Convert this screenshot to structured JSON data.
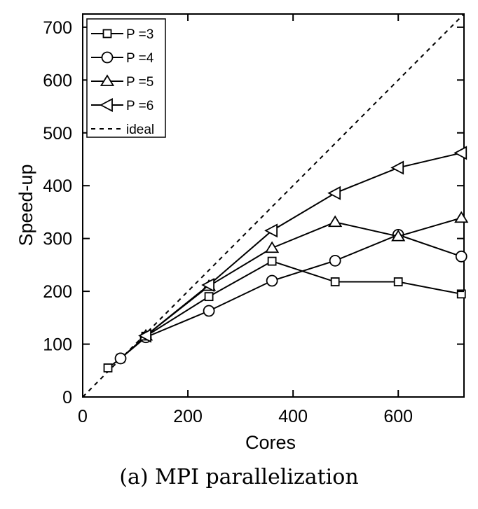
{
  "chart_data": {
    "type": "line",
    "title": "",
    "xlabel": "Cores",
    "ylabel": "Speed-up",
    "xlim": [
      0,
      725
    ],
    "ylim": [
      0,
      725
    ],
    "xticks": [
      0,
      200,
      400,
      600
    ],
    "yticks": [
      0,
      100,
      200,
      300,
      400,
      500,
      600,
      700
    ],
    "grid": false,
    "legend_position": "top-left",
    "series": [
      {
        "name": "P =3",
        "marker": "square",
        "x": [
          48,
          72,
          120,
          240,
          360,
          480,
          600,
          720
        ],
        "values": [
          55,
          73,
          115,
          190,
          257,
          218,
          218,
          195
        ]
      },
      {
        "name": "P =4",
        "marker": "circle",
        "x": [
          72,
          120,
          240,
          360,
          480,
          600,
          720
        ],
        "values": [
          73,
          113,
          163,
          220,
          258,
          307,
          266
        ]
      },
      {
        "name": "P =5",
        "marker": "triangle-up",
        "x": [
          120,
          240,
          360,
          480,
          600,
          720
        ],
        "values": [
          116,
          210,
          282,
          331,
          304,
          339
        ]
      },
      {
        "name": "P =6",
        "marker": "triangle-left",
        "x": [
          120,
          240,
          360,
          480,
          600,
          720
        ],
        "values": [
          116,
          212,
          315,
          386,
          434,
          462
        ]
      },
      {
        "name": "ideal",
        "style": "dashed",
        "x": [
          0,
          725
        ],
        "values": [
          0,
          725
        ]
      }
    ]
  },
  "caption": "(a)  MPI parallelization"
}
